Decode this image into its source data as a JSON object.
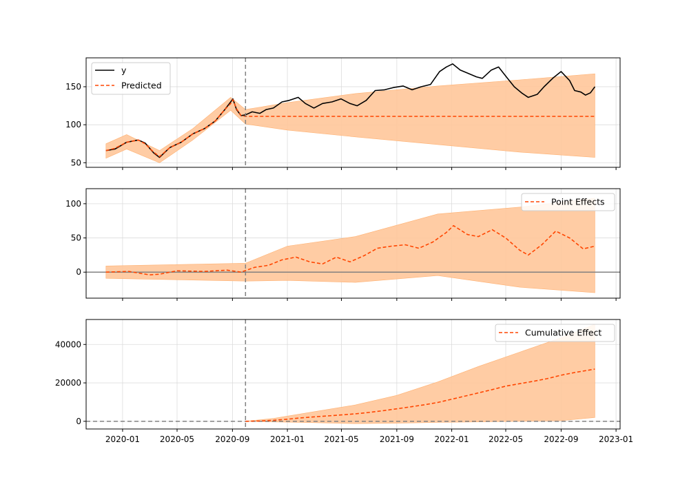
{
  "chart_data": [
    {
      "type": "line",
      "panel": "observed-vs-predicted",
      "x_range": [
        "2019-10-12",
        "2023-01-10"
      ],
      "ylim": [
        44,
        188
      ],
      "y_ticks": [
        50,
        100,
        150
      ],
      "intervention_date": "2020-09-30",
      "grid": true,
      "legend_position": "top-left",
      "series": [
        {
          "name": "y",
          "color": "#000000",
          "style": "solid",
          "x": [
            "2019-11-25",
            "2019-12-15",
            "2020-01-10",
            "2020-02-05",
            "2020-02-20",
            "2020-03-10",
            "2020-03-23",
            "2020-04-15",
            "2020-05-10",
            "2020-06-05",
            "2020-07-01",
            "2020-07-25",
            "2020-08-15",
            "2020-08-28",
            "2020-09-02",
            "2020-09-10",
            "2020-09-20",
            "2020-09-30",
            "2020-10-15",
            "2020-11-01",
            "2020-11-15",
            "2020-12-01",
            "2020-12-20",
            "2021-01-05",
            "2021-01-25",
            "2021-02-10",
            "2021-03-01",
            "2021-03-20",
            "2021-04-10",
            "2021-04-30",
            "2021-05-20",
            "2021-06-05",
            "2021-06-25",
            "2021-07-15",
            "2021-08-05",
            "2021-08-25",
            "2021-09-15",
            "2021-10-05",
            "2021-10-25",
            "2021-11-15",
            "2021-12-05",
            "2021-12-20",
            "2022-01-03",
            "2022-01-20",
            "2022-02-05",
            "2022-02-25",
            "2022-03-10",
            "2022-03-30",
            "2022-04-15",
            "2022-05-01",
            "2022-05-20",
            "2022-06-05",
            "2022-06-20",
            "2022-07-10",
            "2022-07-25",
            "2022-08-15",
            "2022-09-01",
            "2022-09-20",
            "2022-10-01",
            "2022-10-15",
            "2022-10-25",
            "2022-11-05",
            "2022-11-15"
          ],
          "y": [
            66,
            68,
            77,
            80,
            76,
            63,
            57,
            70,
            77,
            88,
            95,
            105,
            120,
            130,
            134,
            120,
            112,
            113,
            117,
            115,
            120,
            122,
            130,
            132,
            136,
            128,
            122,
            128,
            130,
            134,
            128,
            125,
            132,
            145,
            146,
            149,
            151,
            146,
            150,
            153,
            170,
            176,
            180,
            172,
            168,
            163,
            161,
            172,
            176,
            164,
            150,
            142,
            136,
            140,
            150,
            162,
            170,
            158,
            145,
            143,
            139,
            142,
            150
          ]
        },
        {
          "name": "Predicted",
          "color": "#ff4500",
          "style": "dashed",
          "x": [
            "2019-11-25",
            "2019-12-15",
            "2020-01-10",
            "2020-02-05",
            "2020-02-20",
            "2020-03-10",
            "2020-03-23",
            "2020-04-15",
            "2020-05-10",
            "2020-06-05",
            "2020-07-01",
            "2020-07-25",
            "2020-08-15",
            "2020-08-28",
            "2020-09-02",
            "2020-09-10",
            "2020-09-20",
            "2020-09-30",
            "2022-11-15"
          ],
          "y": [
            66,
            69,
            77,
            80,
            75,
            64,
            58,
            70,
            77,
            88,
            95,
            105,
            120,
            128,
            133,
            121,
            112,
            111,
            111
          ]
        }
      ],
      "band": {
        "color": "#ffc69a",
        "x": [
          "2019-11-25",
          "2020-01-10",
          "2020-03-23",
          "2020-06-05",
          "2020-08-28",
          "2020-09-30",
          "2021-01-01",
          "2021-06-01",
          "2021-12-01",
          "2022-06-01",
          "2022-11-15"
        ],
        "lower": [
          56,
          68,
          50,
          80,
          119,
          101,
          93,
          84,
          74,
          64,
          57
        ],
        "upper": [
          75,
          87,
          66,
          95,
          136,
          120,
          129,
          141,
          151,
          159,
          167
        ]
      }
    },
    {
      "type": "line",
      "panel": "point-effects",
      "x_range": [
        "2019-10-12",
        "2023-01-10"
      ],
      "ylim": [
        -38,
        122
      ],
      "y_ticks": [
        0,
        50,
        100
      ],
      "intervention_date": "2020-09-30",
      "zero_line": true,
      "grid": true,
      "legend_position": "top-right",
      "series": [
        {
          "name": "Point Effects",
          "color": "#ff4500",
          "style": "dashed",
          "x": [
            "2019-11-25",
            "2020-01-15",
            "2020-03-01",
            "2020-03-23",
            "2020-05-01",
            "2020-07-01",
            "2020-08-20",
            "2020-09-20",
            "2020-10-20",
            "2020-11-20",
            "2020-12-20",
            "2021-01-20",
            "2021-02-20",
            "2021-03-20",
            "2021-04-20",
            "2021-05-20",
            "2021-06-20",
            "2021-07-20",
            "2021-08-20",
            "2021-09-20",
            "2021-10-20",
            "2021-11-20",
            "2021-12-20",
            "2022-01-05",
            "2022-02-05",
            "2022-03-01",
            "2022-04-01",
            "2022-05-01",
            "2022-06-01",
            "2022-06-20",
            "2022-07-20",
            "2022-08-20",
            "2022-09-20",
            "2022-10-20",
            "2022-11-15"
          ],
          "y": [
            0,
            1,
            -4,
            -3,
            2,
            1,
            3,
            0,
            7,
            10,
            18,
            22,
            15,
            12,
            22,
            15,
            24,
            35,
            38,
            40,
            35,
            44,
            58,
            68,
            55,
            52,
            62,
            50,
            32,
            25,
            40,
            60,
            50,
            34,
            38
          ]
        }
      ],
      "band": {
        "color": "#ffc69a",
        "x": [
          "2019-11-25",
          "2020-09-30",
          "2021-01-01",
          "2021-06-01",
          "2021-12-01",
          "2022-06-01",
          "2022-11-15"
        ],
        "lower": [
          -9,
          -13,
          -12,
          -15,
          -5,
          -22,
          -30
        ],
        "upper": [
          9,
          13,
          38,
          52,
          85,
          95,
          108
        ]
      }
    },
    {
      "type": "line",
      "panel": "cumulative-effect",
      "x_range": [
        "2019-10-12",
        "2023-01-10"
      ],
      "ylim": [
        -4000,
        53000
      ],
      "y_ticks": [
        0,
        20000,
        40000
      ],
      "intervention_date": "2020-09-30",
      "zero_line": true,
      "grid": true,
      "legend_position": "top-right",
      "series": [
        {
          "name": "Cumulative Effect",
          "color": "#ff4500",
          "style": "dashed",
          "x": [
            "2020-09-30",
            "2020-11-01",
            "2020-12-01",
            "2021-01-01",
            "2021-02-01",
            "2021-03-01",
            "2021-04-01",
            "2021-05-01",
            "2021-06-01",
            "2021-07-01",
            "2021-08-01",
            "2021-09-01",
            "2021-10-01",
            "2021-11-01",
            "2021-12-01",
            "2022-01-01",
            "2022-02-01",
            "2022-03-01",
            "2022-04-01",
            "2022-05-01",
            "2022-06-01",
            "2022-07-01",
            "2022-08-01",
            "2022-09-01",
            "2022-10-01",
            "2022-11-15"
          ],
          "y": [
            0,
            200,
            500,
            1100,
            1800,
            2300,
            2800,
            3300,
            3900,
            4600,
            5500,
            6500,
            7500,
            8600,
            9800,
            11500,
            13200,
            14800,
            16500,
            18300,
            19600,
            20800,
            22200,
            24000,
            25400,
            27200
          ]
        }
      ],
      "band": {
        "color": "#ffc69a",
        "x": [
          "2020-09-30",
          "2020-12-01",
          "2021-03-01",
          "2021-06-01",
          "2021-09-01",
          "2021-12-01",
          "2022-03-01",
          "2022-06-01",
          "2022-09-01",
          "2022-11-15"
        ],
        "lower": [
          0,
          -300,
          -700,
          -1200,
          -1000,
          -600,
          -300,
          0,
          300,
          2000
        ],
        "upper": [
          0,
          1500,
          5000,
          8500,
          13500,
          20500,
          28500,
          36000,
          43500,
          50500
        ]
      }
    }
  ],
  "x_ticks": [
    {
      "date": "2020-01-01",
      "label": "2020-01"
    },
    {
      "date": "2020-05-01",
      "label": "2020-05"
    },
    {
      "date": "2020-09-01",
      "label": "2020-09"
    },
    {
      "date": "2021-01-01",
      "label": "2021-01"
    },
    {
      "date": "2021-05-01",
      "label": "2021-05"
    },
    {
      "date": "2021-09-01",
      "label": "2021-09"
    },
    {
      "date": "2022-01-01",
      "label": "2022-01"
    },
    {
      "date": "2022-05-01",
      "label": "2022-05"
    },
    {
      "date": "2022-09-01",
      "label": "2022-09"
    },
    {
      "date": "2023-01-01",
      "label": "2023-01"
    }
  ]
}
